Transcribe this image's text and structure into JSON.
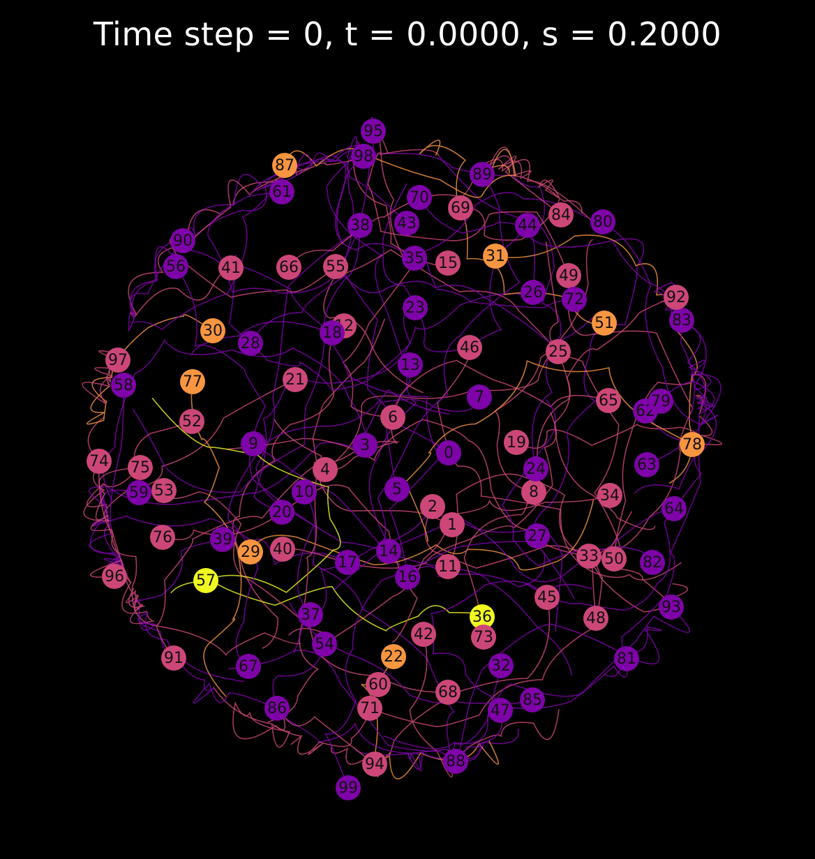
{
  "title": "Time step = 0, t = 0.0000, s = 0.2000",
  "palette": {
    "purple": "#7e03a8",
    "magenta": "#cc4778",
    "orange": "#f89540",
    "yellow": "#f0f921",
    "label": "#111111"
  },
  "nodes": [
    {
      "id": "0",
      "color": "purple",
      "link": "0"
    },
    {
      "id": "1",
      "color": "magenta",
      "link": "0"
    },
    {
      "id": "2",
      "color": "magenta",
      "link": "0"
    },
    {
      "id": "3",
      "color": "purple",
      "link": "0"
    },
    {
      "id": "4",
      "color": "magenta",
      "link": "0"
    },
    {
      "id": "5",
      "color": "purple",
      "link": "0"
    },
    {
      "id": "6",
      "color": "magenta",
      "link": "0"
    },
    {
      "id": "7",
      "color": "purple",
      "link": "0"
    },
    {
      "id": "8",
      "color": "magenta",
      "link": "0"
    },
    {
      "id": "9",
      "color": "purple",
      "link": "0"
    },
    {
      "id": "10",
      "color": "purple",
      "link": "0"
    },
    {
      "id": "11",
      "color": "magenta",
      "link": "0"
    },
    {
      "id": "12",
      "color": "magenta",
      "link": "0"
    },
    {
      "id": "13",
      "color": "purple",
      "link": "0"
    },
    {
      "id": "14",
      "color": "purple",
      "link": "0"
    },
    {
      "id": "15",
      "color": "magenta",
      "link": "0"
    },
    {
      "id": "16",
      "color": "purple",
      "link": "0"
    },
    {
      "id": "17",
      "color": "purple",
      "link": "0"
    },
    {
      "id": "18",
      "color": "purple",
      "link": "0"
    },
    {
      "id": "19",
      "color": "magenta",
      "link": "0"
    },
    {
      "id": "20",
      "color": "purple",
      "link": "0"
    },
    {
      "id": "21",
      "color": "magenta",
      "link": "0"
    },
    {
      "id": "22",
      "color": "orange",
      "link": "0"
    },
    {
      "id": "23",
      "color": "purple",
      "link": "0"
    },
    {
      "id": "24",
      "color": "purple",
      "link": "0"
    },
    {
      "id": "25",
      "color": "magenta",
      "link": "0"
    },
    {
      "id": "26",
      "color": "purple",
      "link": "0"
    },
    {
      "id": "27",
      "color": "purple",
      "link": "0"
    },
    {
      "id": "28",
      "color": "purple",
      "link": "0"
    },
    {
      "id": "29",
      "color": "orange",
      "link": "0"
    },
    {
      "id": "30",
      "color": "orange",
      "link": "0"
    },
    {
      "id": "31",
      "color": "orange",
      "link": "0"
    },
    {
      "id": "32",
      "color": "purple",
      "link": "0"
    },
    {
      "id": "33",
      "color": "magenta",
      "link": "0"
    },
    {
      "id": "34",
      "color": "magenta",
      "link": "0"
    },
    {
      "id": "35",
      "color": "purple",
      "link": "0"
    },
    {
      "id": "36",
      "color": "yellow",
      "link": "0"
    },
    {
      "id": "37",
      "color": "purple",
      "link": "0"
    },
    {
      "id": "38",
      "color": "purple",
      "link": "0"
    },
    {
      "id": "39",
      "color": "purple",
      "link": "0"
    },
    {
      "id": "40",
      "color": "magenta",
      "link": "0"
    },
    {
      "id": "41",
      "color": "magenta",
      "link": "0"
    },
    {
      "id": "42",
      "color": "magenta",
      "link": "0"
    },
    {
      "id": "43",
      "color": "purple",
      "link": "0"
    },
    {
      "id": "44",
      "color": "purple",
      "link": "0"
    },
    {
      "id": "45",
      "color": "magenta",
      "link": "0"
    },
    {
      "id": "46",
      "color": "magenta",
      "link": "0"
    },
    {
      "id": "47",
      "color": "purple",
      "link": "0"
    },
    {
      "id": "48",
      "color": "magenta",
      "link": "0"
    },
    {
      "id": "49",
      "color": "magenta",
      "link": "0"
    },
    {
      "id": "50",
      "color": "magenta",
      "link": "0"
    },
    {
      "id": "51",
      "color": "orange",
      "link": "0"
    },
    {
      "id": "52",
      "color": "magenta",
      "link": "0"
    },
    {
      "id": "53",
      "color": "magenta",
      "link": "0"
    },
    {
      "id": "54",
      "color": "purple",
      "link": "0"
    },
    {
      "id": "55",
      "color": "magenta",
      "link": "0"
    },
    {
      "id": "56",
      "color": "purple",
      "link": "0"
    },
    {
      "id": "57",
      "color": "yellow",
      "link": "0"
    },
    {
      "id": "58",
      "color": "purple",
      "link": "0"
    },
    {
      "id": "59",
      "color": "purple",
      "link": "0"
    },
    {
      "id": "60",
      "color": "magenta",
      "link": "0"
    },
    {
      "id": "61",
      "color": "purple",
      "link": "0"
    },
    {
      "id": "62",
      "color": "purple",
      "link": "0"
    },
    {
      "id": "63",
      "color": "purple",
      "link": "0"
    },
    {
      "id": "64",
      "color": "purple",
      "link": "0"
    },
    {
      "id": "65",
      "color": "magenta",
      "link": "0"
    },
    {
      "id": "66",
      "color": "magenta",
      "link": "0"
    },
    {
      "id": "67",
      "color": "purple",
      "link": "0"
    },
    {
      "id": "68",
      "color": "magenta",
      "link": "0"
    },
    {
      "id": "69",
      "color": "magenta",
      "link": "0"
    },
    {
      "id": "70",
      "color": "purple",
      "link": "0"
    },
    {
      "id": "71",
      "color": "magenta",
      "link": "0"
    },
    {
      "id": "72",
      "color": "purple",
      "link": "0"
    },
    {
      "id": "73",
      "color": "magenta",
      "link": "0"
    },
    {
      "id": "74",
      "color": "magenta",
      "link": "0"
    },
    {
      "id": "75",
      "color": "magenta",
      "link": "0"
    },
    {
      "id": "76",
      "color": "magenta",
      "link": "0"
    },
    {
      "id": "77",
      "color": "orange",
      "link": "0"
    },
    {
      "id": "78",
      "color": "orange",
      "link": "0"
    },
    {
      "id": "79",
      "color": "purple",
      "link": "0"
    },
    {
      "id": "80",
      "color": "purple",
      "link": "0"
    },
    {
      "id": "81",
      "color": "purple",
      "link": "0"
    },
    {
      "id": "82",
      "color": "purple",
      "link": "0"
    },
    {
      "id": "83",
      "color": "purple",
      "link": "0"
    },
    {
      "id": "84",
      "color": "magenta",
      "link": "0"
    },
    {
      "id": "85",
      "color": "purple",
      "link": "0"
    },
    {
      "id": "86",
      "color": "purple",
      "link": "0"
    },
    {
      "id": "87",
      "color": "orange",
      "link": "0"
    },
    {
      "id": "88",
      "color": "purple",
      "link": "0"
    },
    {
      "id": "89",
      "color": "purple",
      "link": "0"
    },
    {
      "id": "90",
      "color": "purple",
      "link": "0"
    },
    {
      "id": "91",
      "color": "magenta",
      "link": "0"
    },
    {
      "id": "92",
      "color": "magenta",
      "link": "0"
    },
    {
      "id": "93",
      "color": "purple",
      "link": "0"
    },
    {
      "id": "94",
      "color": "magenta",
      "link": "0"
    },
    {
      "id": "95",
      "color": "purple",
      "link": "0"
    },
    {
      "id": "96",
      "color": "magenta",
      "link": "0"
    },
    {
      "id": "97",
      "color": "magenta",
      "link": "0"
    },
    {
      "id": "98",
      "color": "purple",
      "link": "0"
    },
    {
      "id": "99",
      "color": "purple",
      "link": "0"
    }
  ]
}
